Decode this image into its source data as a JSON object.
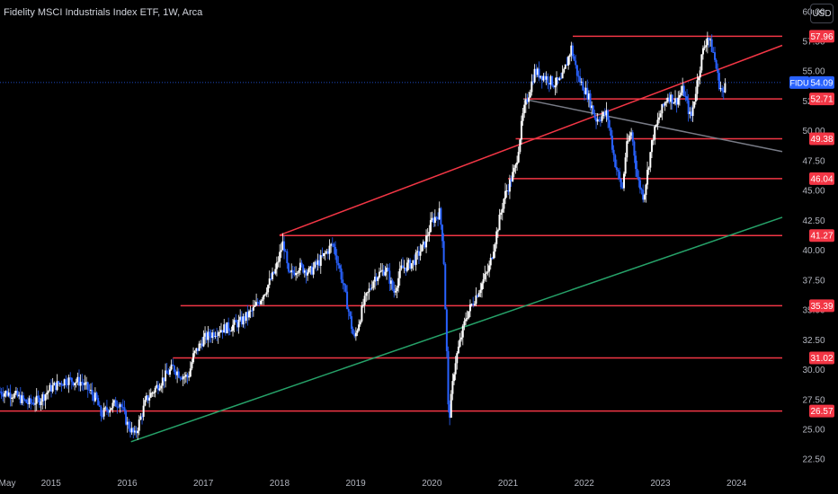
{
  "header": {
    "title": "Fidelity MSCI Industrials Index ETF, 1W, Arca",
    "currency_button": "USD"
  },
  "chart_data": {
    "type": "candlestick",
    "symbol": "FIDU",
    "last_price": "54.09",
    "price_ticks": [
      "60.00",
      "57.50",
      "55.00",
      "52.50",
      "50.00",
      "47.50",
      "45.00",
      "42.50",
      "40.00",
      "37.50",
      "35.00",
      "32.50",
      "30.00",
      "27.50",
      "25.00",
      "22.50"
    ],
    "time_ticks": [
      {
        "label": "May",
        "date": 2014.33
      },
      {
        "label": "2015",
        "date": 2015.0
      },
      {
        "label": "2016",
        "date": 2016.0
      },
      {
        "label": "2017",
        "date": 2017.0
      },
      {
        "label": "2018",
        "date": 2018.0
      },
      {
        "label": "2019",
        "date": 2019.0
      },
      {
        "label": "2020",
        "date": 2020.0
      },
      {
        "label": "2021",
        "date": 2021.0
      },
      {
        "label": "2022",
        "date": 2022.0
      },
      {
        "label": "2023",
        "date": 2023.0
      },
      {
        "label": "2024",
        "date": 2024.0
      }
    ],
    "y_range": [
      21.5,
      61.0
    ],
    "x_range": [
      2014.33,
      2024.6
    ],
    "horizontal_levels": [
      {
        "label": "57.96",
        "price": 57.96,
        "start": 2021.85
      },
      {
        "label": "52.71",
        "price": 52.71,
        "start": 2021.2
      },
      {
        "label": "49.38",
        "price": 49.38,
        "start": 2021.1
      },
      {
        "label": "46.04",
        "price": 46.04,
        "start": 2021.0
      },
      {
        "label": "41.27",
        "price": 41.27,
        "start": 2018.0
      },
      {
        "label": "35.39",
        "price": 35.39,
        "start": 2016.7
      },
      {
        "label": "31.02",
        "price": 31.02,
        "start": 2016.6
      },
      {
        "label": "26.57",
        "price": 26.57,
        "start": 2014.33
      }
    ],
    "trend_lines": [
      {
        "color": "#f23645",
        "points": [
          [
            2018.0,
            41.3
          ],
          [
            2024.6,
            57.2
          ]
        ]
      },
      {
        "color": "#26a269",
        "points": [
          [
            2016.05,
            24.0
          ],
          [
            2024.6,
            42.8
          ]
        ]
      },
      {
        "color": "#787b86",
        "points": [
          [
            2021.2,
            52.7
          ],
          [
            2024.6,
            48.3
          ]
        ]
      }
    ],
    "price_path": [
      [
        2014.33,
        28.2
      ],
      [
        2014.5,
        28.0
      ],
      [
        2014.7,
        27.2
      ],
      [
        2014.85,
        27.5
      ],
      [
        2015.0,
        28.5
      ],
      [
        2015.2,
        29.2
      ],
      [
        2015.4,
        29.0
      ],
      [
        2015.5,
        28.3
      ],
      [
        2015.6,
        27.5
      ],
      [
        2015.65,
        26.2
      ],
      [
        2015.75,
        26.8
      ],
      [
        2015.9,
        27.4
      ],
      [
        2016.0,
        25.5
      ],
      [
        2016.1,
        24.5
      ],
      [
        2016.25,
        27.5
      ],
      [
        2016.4,
        28.7
      ],
      [
        2016.5,
        29.5
      ],
      [
        2016.6,
        30.2
      ],
      [
        2016.7,
        29.6
      ],
      [
        2016.8,
        29.4
      ],
      [
        2016.87,
        31.2
      ],
      [
        2017.0,
        32.6
      ],
      [
        2017.2,
        33.4
      ],
      [
        2017.35,
        33.6
      ],
      [
        2017.5,
        34.1
      ],
      [
        2017.65,
        35.0
      ],
      [
        2017.8,
        36.5
      ],
      [
        2017.95,
        38.4
      ],
      [
        2018.05,
        40.8
      ],
      [
        2018.12,
        37.8
      ],
      [
        2018.25,
        38.7
      ],
      [
        2018.4,
        38.2
      ],
      [
        2018.55,
        39.3
      ],
      [
        2018.7,
        40.6
      ],
      [
        2018.8,
        38.2
      ],
      [
        2018.88,
        35.8
      ],
      [
        2018.98,
        32.5
      ],
      [
        2019.1,
        35.5
      ],
      [
        2019.25,
        37.8
      ],
      [
        2019.4,
        38.5
      ],
      [
        2019.5,
        36.5
      ],
      [
        2019.6,
        38.5
      ],
      [
        2019.75,
        39.0
      ],
      [
        2019.9,
        40.5
      ],
      [
        2020.0,
        42.5
      ],
      [
        2020.1,
        43.2
      ],
      [
        2020.15,
        40.5
      ],
      [
        2020.2,
        30.5
      ],
      [
        2020.22,
        25.5
      ],
      [
        2020.3,
        30.5
      ],
      [
        2020.45,
        34.5
      ],
      [
        2020.6,
        36.5
      ],
      [
        2020.75,
        38.5
      ],
      [
        2020.85,
        41.5
      ],
      [
        2020.95,
        44.5
      ],
      [
        2021.1,
        47.0
      ],
      [
        2021.2,
        51.5
      ],
      [
        2021.35,
        55.0
      ],
      [
        2021.5,
        54.5
      ],
      [
        2021.6,
        54.0
      ],
      [
        2021.7,
        54.2
      ],
      [
        2021.83,
        57.0
      ],
      [
        2021.92,
        54.5
      ],
      [
        2022.05,
        53.0
      ],
      [
        2022.15,
        51.0
      ],
      [
        2022.3,
        51.5
      ],
      [
        2022.4,
        47.5
      ],
      [
        2022.5,
        45.0
      ],
      [
        2022.55,
        48.5
      ],
      [
        2022.62,
        50.0
      ],
      [
        2022.7,
        46.0
      ],
      [
        2022.78,
        44.5
      ],
      [
        2022.9,
        49.5
      ],
      [
        2023.0,
        51.5
      ],
      [
        2023.1,
        53.0
      ],
      [
        2023.2,
        52.5
      ],
      [
        2023.3,
        53.5
      ],
      [
        2023.4,
        51.0
      ],
      [
        2023.48,
        54.0
      ],
      [
        2023.55,
        56.5
      ],
      [
        2023.62,
        58.0
      ],
      [
        2023.7,
        56.5
      ],
      [
        2023.77,
        54.0
      ],
      [
        2023.83,
        53.0
      ],
      [
        2023.85,
        54.09
      ]
    ]
  }
}
